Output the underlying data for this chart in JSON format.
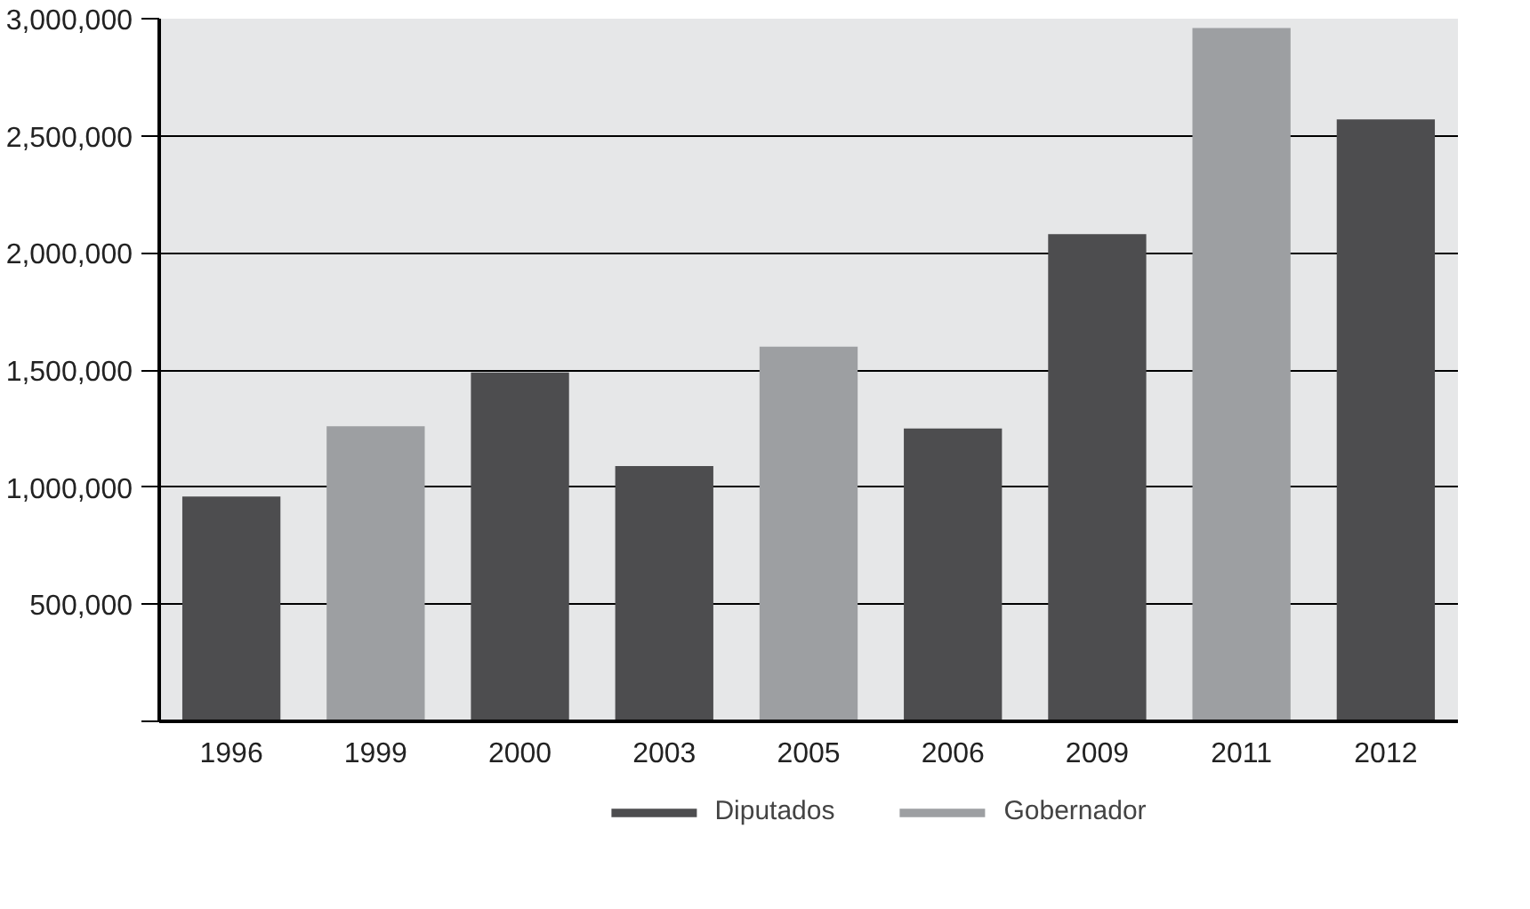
{
  "chart_data": {
    "type": "bar",
    "categories": [
      "1996",
      "1999",
      "2000",
      "2003",
      "2005",
      "2006",
      "2009",
      "2011",
      "2012"
    ],
    "series": [
      {
        "name": "Diputados",
        "color": "#4d4d4f",
        "values": [
          960000,
          null,
          1490000,
          1090000,
          null,
          1250000,
          2080000,
          null,
          2570000
        ]
      },
      {
        "name": "Gobernador",
        "color": "#9d9fa2",
        "values": [
          null,
          1260000,
          null,
          null,
          1600000,
          null,
          null,
          2960000,
          null
        ]
      }
    ],
    "ylim": [
      0,
      3000000
    ],
    "yticks": [
      {
        "value": 0,
        "label": null
      },
      {
        "value": 500000,
        "label": "500,000"
      },
      {
        "value": 1000000,
        "label": "1,000,000"
      },
      {
        "value": 1500000,
        "label": "1,500,000"
      },
      {
        "value": 2000000,
        "label": "2,000,000"
      },
      {
        "value": 2500000,
        "label": "2,500,000"
      },
      {
        "value": 3000000,
        "label": "3,000,000"
      }
    ],
    "grid": "y",
    "legend": "bottom"
  }
}
